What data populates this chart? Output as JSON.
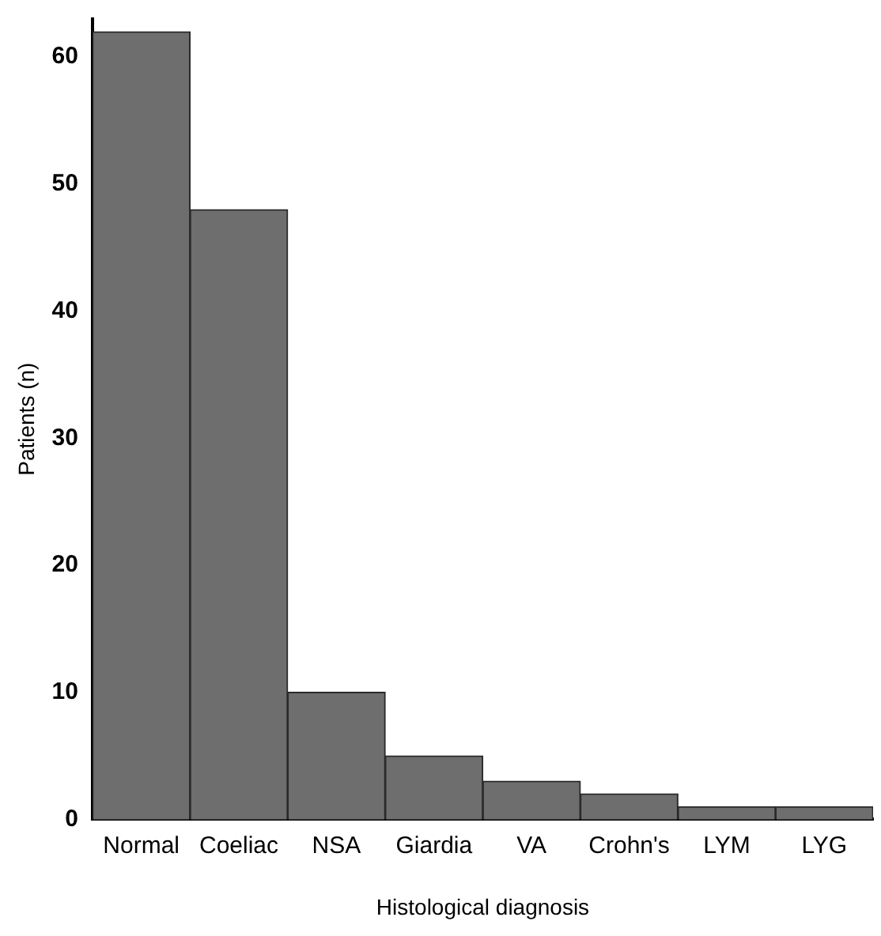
{
  "chart_data": {
    "type": "bar",
    "xlabel": "Histological diagnosis",
    "ylabel": "Patients (n)",
    "categories": [
      "Normal",
      "Coeliac",
      "NSA",
      "Giardia",
      "VA",
      "Crohn's",
      "LYM",
      "LYG"
    ],
    "values": [
      62,
      48,
      10,
      5,
      3,
      2,
      1,
      1
    ],
    "color": "#6e6e6e",
    "ylim": [
      0,
      63
    ],
    "yticks": [
      0,
      10,
      20,
      30,
      40,
      50,
      60
    ],
    "grid": false,
    "legend": false
  }
}
